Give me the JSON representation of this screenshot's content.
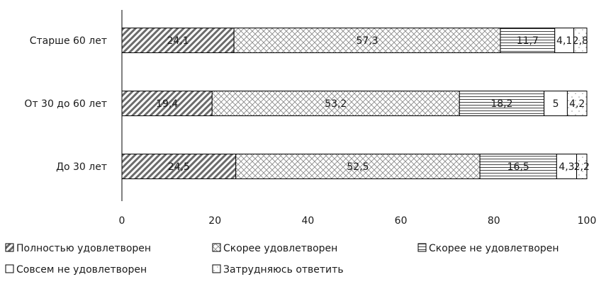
{
  "chart_data": {
    "type": "bar",
    "orientation": "horizontal",
    "stacked": true,
    "categories": [
      "Старше 60 лет",
      "От 30 до 60 лет",
      "До 30 лет"
    ],
    "series": [
      {
        "name": "Полностью удовлетворен",
        "values": [
          24.1,
          19.4,
          24.5
        ],
        "labels": [
          "24,1",
          "19,4",
          "24,5"
        ]
      },
      {
        "name": "Скорее удовлетворен",
        "values": [
          57.3,
          53.2,
          52.5
        ],
        "labels": [
          "57,3",
          "53,2",
          "52,5"
        ]
      },
      {
        "name": "Скорее не удовлетворен",
        "values": [
          11.7,
          18.2,
          16.5
        ],
        "labels": [
          "11,7",
          "18,2",
          "16,5"
        ]
      },
      {
        "name": "Совсем не удовлетворен",
        "values": [
          4.1,
          5,
          4.3
        ],
        "labels": [
          "4,1",
          "5",
          "4,3"
        ]
      },
      {
        "name": "Затрудняюсь ответить",
        "values": [
          2.8,
          4.2,
          2.2
        ],
        "labels": [
          "2,8",
          "4,2",
          "2,2"
        ]
      }
    ],
    "xlim": [
      0,
      100
    ],
    "xticks": [
      "0",
      "20",
      "40",
      "60",
      "80",
      "100"
    ],
    "grid": false,
    "legend_position": "bottom"
  }
}
